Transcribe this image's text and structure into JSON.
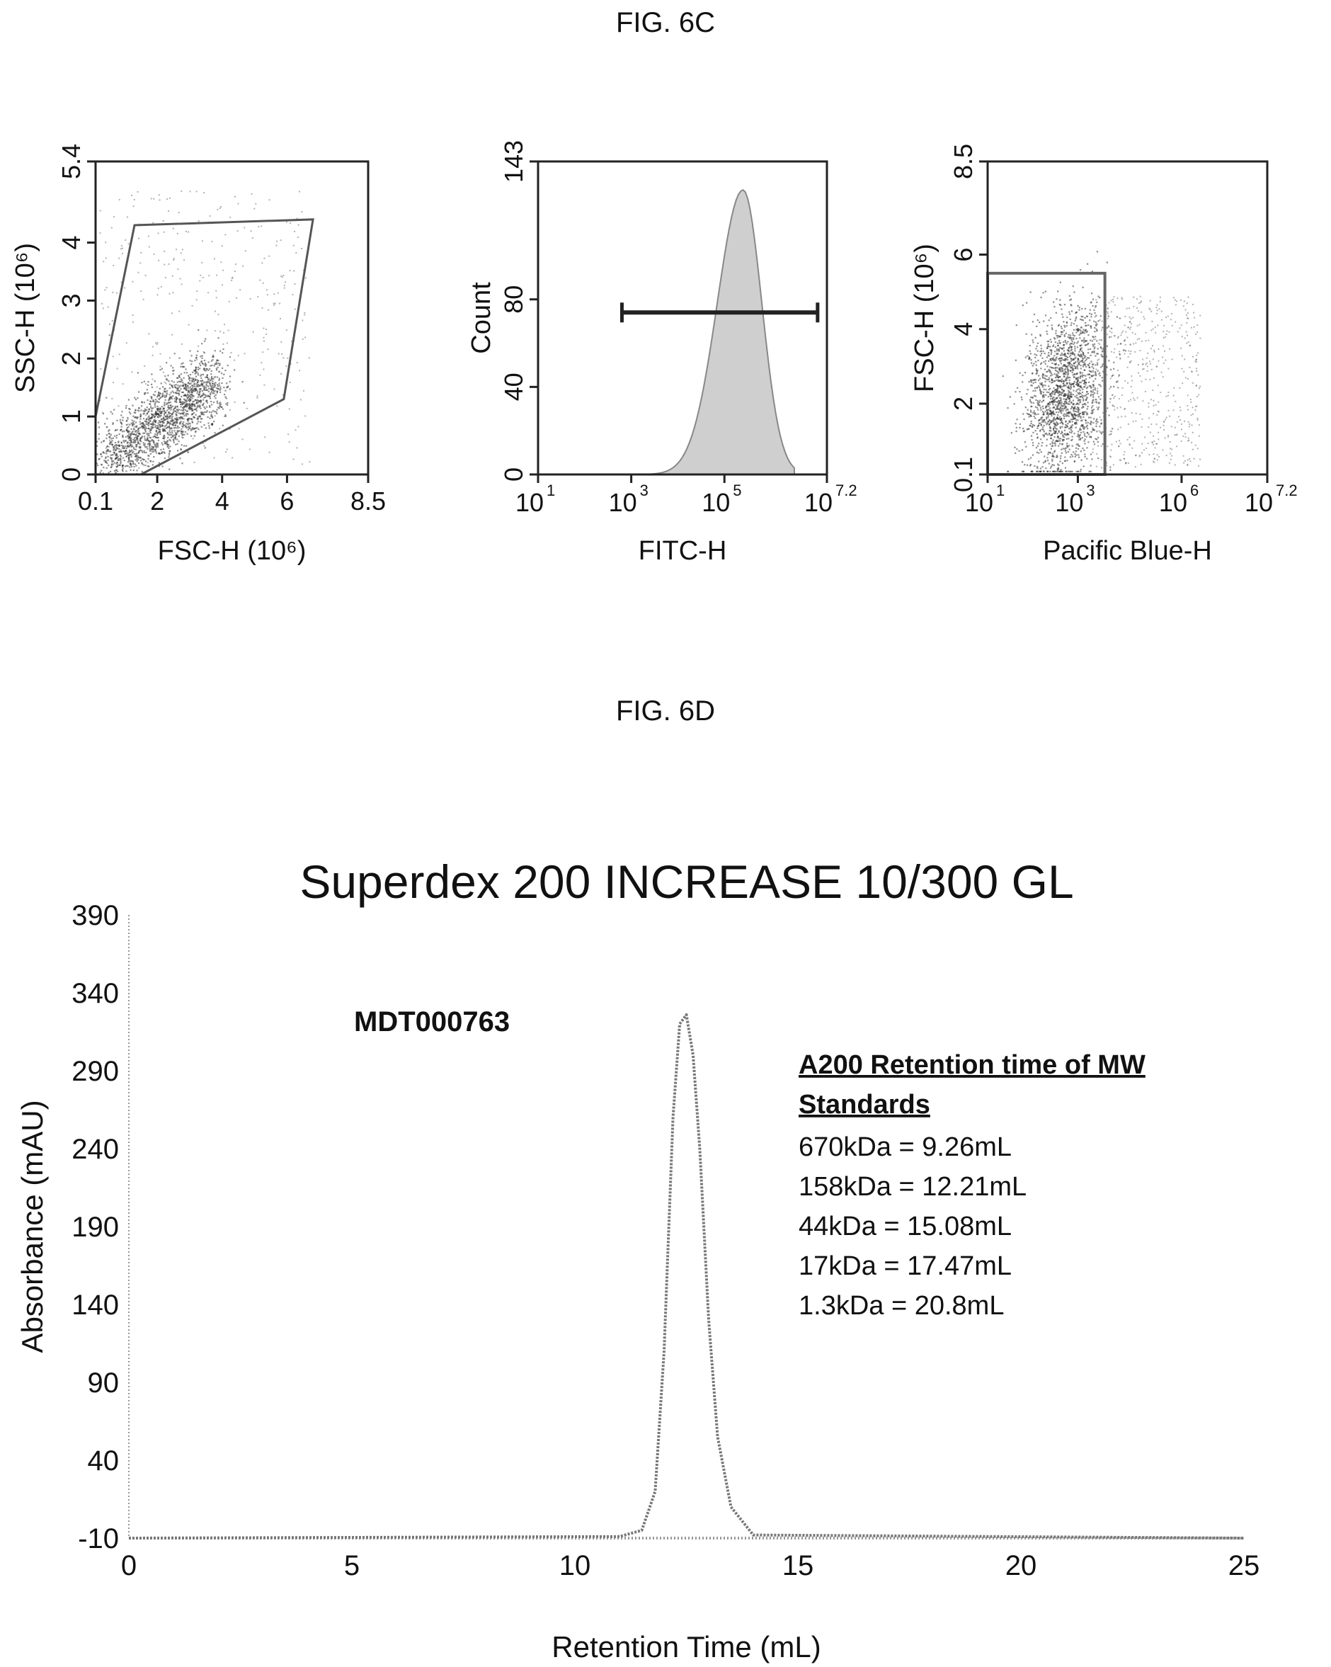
{
  "figures": {
    "fig_6c_label": "FIG. 6C",
    "fig_6d_label": "FIG. 6D"
  },
  "chart_data": [
    {
      "type": "scatter",
      "panel": "6C-1",
      "xlabel": "FSC-H (10⁶)",
      "ylabel": "SSC-H (10⁶)",
      "xlim": [
        0.1,
        8.5
      ],
      "ylim": [
        0,
        5.4
      ],
      "x_ticks": [
        "0.1",
        "2",
        "4",
        "6",
        "8.5"
      ],
      "x_tick_values": [
        0.1,
        2,
        4,
        6,
        8.5
      ],
      "y_ticks": [
        "0",
        "1",
        "2",
        "3",
        "4",
        "5.4"
      ],
      "y_tick_values": [
        0,
        1,
        2,
        3,
        4,
        5.4
      ],
      "gate_polygon": [
        [
          1.3,
          4.3
        ],
        [
          6.8,
          4.4
        ],
        [
          5.9,
          1.3
        ],
        [
          1.5,
          0.0
        ],
        [
          0.1,
          0.0
        ],
        [
          0.1,
          1.0
        ]
      ]
    },
    {
      "type": "area",
      "panel": "6C-2",
      "xlabel": "FITC-H",
      "ylabel": "Count",
      "x_scale": "log",
      "xlim": [
        1,
        7.2
      ],
      "ylim": [
        0,
        143
      ],
      "x_ticks": [
        "10",
        "10",
        "10",
        "10"
      ],
      "x_tick_exponents": [
        "1",
        "3",
        "5",
        "7.2"
      ],
      "x_tick_values": [
        1,
        3,
        5,
        7.2
      ],
      "y_ticks": [
        "0",
        "40",
        "80",
        "143"
      ],
      "y_tick_values": [
        0,
        40,
        80,
        143
      ],
      "histogram_peak_log10": 5.4,
      "histogram_peak_count": 130,
      "gate_range_log10": [
        2.8,
        7.0
      ],
      "gate_level_count": 74
    },
    {
      "type": "scatter",
      "panel": "6C-3",
      "xlabel": "Pacific Blue-H",
      "ylabel": "FSC-H (10⁶)",
      "x_scale": "log",
      "xlim": [
        1,
        7.2
      ],
      "ylim": [
        0.1,
        8.5
      ],
      "x_ticks": [
        "10",
        "10",
        "10",
        "10"
      ],
      "x_tick_exponents": [
        "1",
        "3",
        "6",
        "7.2"
      ],
      "x_tick_values": [
        1,
        3,
        5.3,
        7.2
      ],
      "y_ticks": [
        "0.1",
        "2",
        "4",
        "6",
        "8.5"
      ],
      "y_tick_values": [
        0.1,
        2,
        4,
        6,
        8.5
      ],
      "gate_rect": {
        "x_log10": [
          1,
          3.6
        ],
        "y": [
          0.1,
          5.5
        ]
      }
    },
    {
      "type": "line",
      "panel": "6D",
      "title": "Superdex 200 INCREASE 10/300 GL",
      "xlabel": "Retention Time (mL)",
      "ylabel": "Absorbance (mAU)",
      "xlim": [
        0,
        25
      ],
      "ylim": [
        -10,
        390
      ],
      "x_ticks": [
        "0",
        "5",
        "10",
        "15",
        "20",
        "25"
      ],
      "x_tick_values": [
        0,
        5,
        10,
        15,
        20,
        25
      ],
      "y_ticks": [
        "-10",
        "40",
        "90",
        "140",
        "190",
        "240",
        "290",
        "340",
        "390"
      ],
      "y_tick_values": [
        -10,
        40,
        90,
        140,
        190,
        240,
        290,
        340,
        390
      ],
      "series": [
        {
          "name": "MDT000763",
          "x": [
            0,
            11.0,
            11.5,
            11.8,
            12.0,
            12.2,
            12.35,
            12.5,
            12.65,
            12.8,
            13.0,
            13.2,
            13.5,
            14.0,
            25
          ],
          "y": [
            -10,
            -9,
            -5,
            20,
            110,
            260,
            320,
            326,
            300,
            240,
            130,
            55,
            10,
            -8,
            -10
          ]
        }
      ],
      "annotation": {
        "sample_label": "MDT000763",
        "legend_heading_1": "A200 Retention time of MW",
        "legend_heading_2": "Standards",
        "standards": [
          "670kDa = 9.26mL",
          "158kDa = 12.21mL",
          "44kDa = 15.08mL",
          "17kDa = 17.47mL",
          "1.3kDa = 20.8mL"
        ]
      }
    }
  ]
}
